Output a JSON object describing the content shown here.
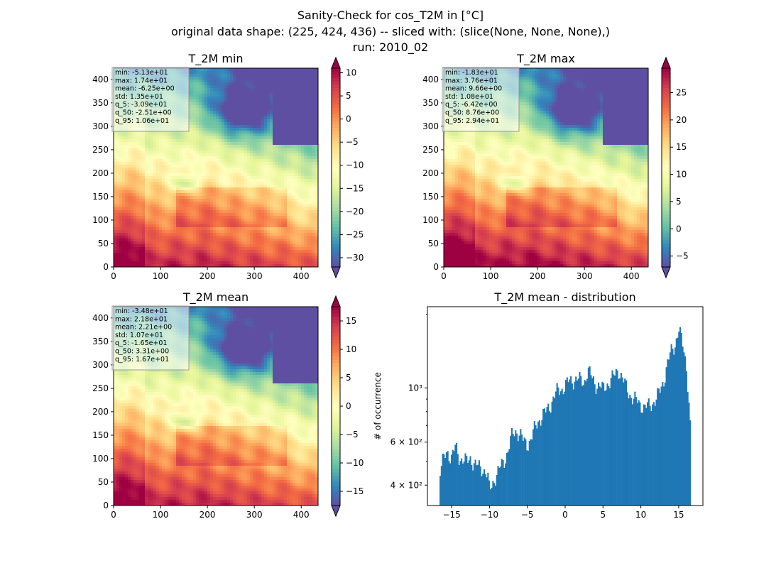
{
  "figure": {
    "title_lines": [
      "Sanity-Check for cos_T2M in [°C]",
      "original data shape: (225, 424, 436) -- sliced with: (slice(None, None, None),)",
      "run: 2010_02"
    ]
  },
  "chart_data": [
    {
      "type": "heatmap",
      "title": "T_2M min",
      "colormap": "Spectral_r",
      "xlim": [
        0,
        436
      ],
      "ylim": [
        0,
        424
      ],
      "x_ticks": [
        "0",
        "100",
        "200",
        "300",
        "400"
      ],
      "y_ticks": [
        "0",
        "50",
        "100",
        "150",
        "200",
        "250",
        "300",
        "350",
        "400"
      ],
      "colorbar": {
        "vmin": -32,
        "vmax": 11,
        "ticks": [
          "10",
          "5",
          "0",
          "−5",
          "−10",
          "−15",
          "−20",
          "−25",
          "−30"
        ],
        "tick_values": [
          10,
          5,
          0,
          -5,
          -10,
          -15,
          -20,
          -25,
          -30
        ]
      },
      "stats": [
        "min: -5.13e+01",
        "max: 1.74e+01",
        "mean: -6.25e+00",
        "std: 1.35e+01",
        "q_5: -3.09e+01",
        "q_50: -2.51e+00",
        "q_95: 1.06e+01"
      ]
    },
    {
      "type": "heatmap",
      "title": "T_2M max",
      "colormap": "Spectral_r",
      "xlim": [
        0,
        436
      ],
      "ylim": [
        0,
        424
      ],
      "x_ticks": [
        "0",
        "100",
        "200",
        "300",
        "400"
      ],
      "y_ticks": [
        "0",
        "50",
        "100",
        "150",
        "200",
        "250",
        "300",
        "350",
        "400"
      ],
      "colorbar": {
        "vmin": -7,
        "vmax": 29.5,
        "ticks": [
          "25",
          "20",
          "15",
          "10",
          "5",
          "0",
          "−5"
        ],
        "tick_values": [
          25,
          20,
          15,
          10,
          5,
          0,
          -5
        ]
      },
      "stats": [
        "min: -1.83e+01",
        "max: 3.76e+01",
        "mean: 9.66e+00",
        "std: 1.08e+01",
        "q_5: -6.42e+00",
        "q_50: 8.76e+00",
        "q_95: 2.94e+01"
      ]
    },
    {
      "type": "heatmap",
      "title": "T_2M mean",
      "colormap": "Spectral_r",
      "xlim": [
        0,
        436
      ],
      "ylim": [
        0,
        424
      ],
      "x_ticks": [
        "0",
        "100",
        "200",
        "300",
        "400"
      ],
      "y_ticks": [
        "0",
        "50",
        "100",
        "150",
        "200",
        "250",
        "300",
        "350",
        "400"
      ],
      "colorbar": {
        "vmin": -17.5,
        "vmax": 17.5,
        "ticks": [
          "15",
          "10",
          "5",
          "0",
          "−5",
          "−10",
          "−15"
        ],
        "tick_values": [
          15,
          10,
          5,
          0,
          -5,
          -10,
          -15
        ]
      },
      "stats": [
        "min: -3.48e+01",
        "max: 2.18e+01",
        "mean: 2.21e+00",
        "std: 1.07e+01",
        "q_5: -1.65e+01",
        "q_50: 3.31e+00",
        "q_95: 1.67e+01"
      ]
    },
    {
      "type": "bar",
      "title": "T_2M mean - distribution",
      "ylabel": "# of occurrence",
      "yscale": "log",
      "xlim": [
        -18.2,
        18.2
      ],
      "ylim": [
        330,
        2150
      ],
      "color": "#1f77b4",
      "x_ticks": [
        "−15",
        "−10",
        "−5",
        "0",
        "5",
        "10",
        "15"
      ],
      "x_tick_values": [
        -15,
        -10,
        -5,
        0,
        5,
        10,
        15
      ],
      "y_ticks": [
        "4 × 10²",
        "6 × 10²",
        "10³"
      ],
      "y_tick_values": [
        400,
        600,
        1000
      ],
      "bin_range": [
        -16.6,
        16.6
      ],
      "bin_width": 0.166,
      "curve_points": [
        [
          -16.6,
          450
        ],
        [
          -16.2,
          495
        ],
        [
          -15.6,
          550
        ],
        [
          -15.0,
          520
        ],
        [
          -14.5,
          570
        ],
        [
          -14.0,
          520
        ],
        [
          -13.5,
          510
        ],
        [
          -13.0,
          495
        ],
        [
          -12.5,
          520
        ],
        [
          -12.0,
          485
        ],
        [
          -11.5,
          475
        ],
        [
          -11.0,
          470
        ],
        [
          -10.5,
          455
        ],
        [
          -10.2,
          420
        ],
        [
          -10.0,
          380
        ],
        [
          -9.7,
          400
        ],
        [
          -9.3,
          430
        ],
        [
          -9.0,
          445
        ],
        [
          -8.5,
          475
        ],
        [
          -8.0,
          510
        ],
        [
          -7.5,
          560
        ],
        [
          -7.0,
          640
        ],
        [
          -6.5,
          670
        ],
        [
          -6.0,
          650
        ],
        [
          -5.5,
          600
        ],
        [
          -5.0,
          590
        ],
        [
          -4.5,
          620
        ],
        [
          -4.0,
          680
        ],
        [
          -3.5,
          740
        ],
        [
          -3.0,
          770
        ],
        [
          -2.5,
          800
        ],
        [
          -2.0,
          850
        ],
        [
          -1.5,
          920
        ],
        [
          -1.0,
          970
        ],
        [
          -0.5,
          990
        ],
        [
          0.0,
          1020
        ],
        [
          0.5,
          1060
        ],
        [
          1.0,
          1080
        ],
        [
          1.5,
          1090
        ],
        [
          2.0,
          1070
        ],
        [
          2.5,
          1060
        ],
        [
          3.0,
          1180
        ],
        [
          3.5,
          1100
        ],
        [
          4.0,
          1040
        ],
        [
          4.5,
          1020
        ],
        [
          5.0,
          980
        ],
        [
          5.5,
          1040
        ],
        [
          6.0,
          1070
        ],
        [
          6.5,
          1120
        ],
        [
          7.0,
          1200
        ],
        [
          7.5,
          1100
        ],
        [
          8.0,
          1010
        ],
        [
          8.5,
          950
        ],
        [
          9.0,
          900
        ],
        [
          9.5,
          880
        ],
        [
          10.0,
          860
        ],
        [
          10.5,
          830
        ],
        [
          11.0,
          840
        ],
        [
          11.5,
          870
        ],
        [
          12.0,
          900
        ],
        [
          12.5,
          960
        ],
        [
          13.0,
          1070
        ],
        [
          13.5,
          1250
        ],
        [
          14.0,
          1400
        ],
        [
          14.5,
          1500
        ],
        [
          15.0,
          1750
        ],
        [
          15.5,
          1500
        ],
        [
          16.0,
          1250
        ],
        [
          16.4,
          820
        ],
        [
          16.6,
          620
        ]
      ]
    }
  ]
}
